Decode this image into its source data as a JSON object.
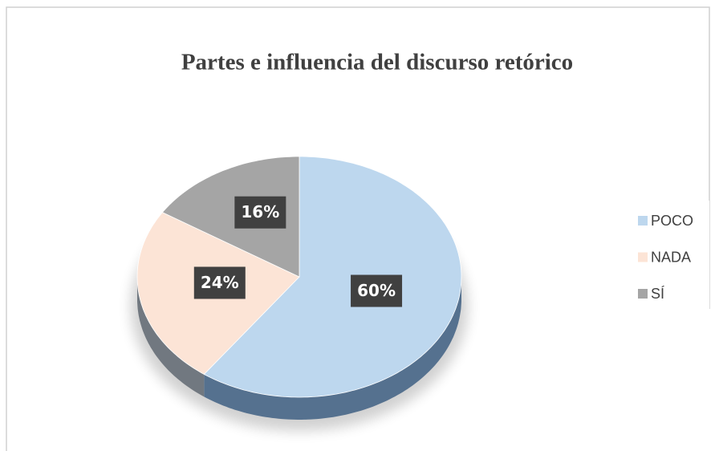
{
  "chart_data": {
    "type": "pie",
    "title": "Partes e influencia del discurso retórico",
    "categories": [
      "POCO",
      "NADA",
      "SÍ"
    ],
    "values": [
      60,
      24,
      16
    ],
    "value_labels": [
      "60%",
      "24%",
      "16%"
    ],
    "colors": [
      "#bdd7ee",
      "#fce4d6",
      "#a5a5a5"
    ],
    "legend": "right"
  }
}
